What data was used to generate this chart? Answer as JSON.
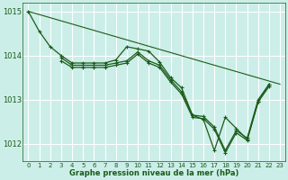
{
  "background_color": "#cceee8",
  "grid_color": "#ffffff",
  "line_color": "#1a5c1a",
  "xlabel": "Graphe pression niveau de la mer (hPa)",
  "ylim": [
    1011.6,
    1015.2
  ],
  "xlim": [
    -0.5,
    23.5
  ],
  "yticks": [
    1012,
    1013,
    1014,
    1015
  ],
  "xticks": [
    0,
    1,
    2,
    3,
    4,
    5,
    6,
    7,
    8,
    9,
    10,
    11,
    12,
    13,
    14,
    15,
    16,
    17,
    18,
    19,
    20,
    21,
    22,
    23
  ],
  "line1_x": [
    0,
    23
  ],
  "line1_y": [
    1015.0,
    1013.35
  ],
  "line2_x": [
    0,
    1,
    2,
    3,
    4,
    5,
    6,
    7,
    8,
    9,
    10,
    11,
    12,
    13,
    14,
    15,
    16,
    17,
    18,
    19,
    20,
    21,
    22
  ],
  "line2_y": [
    1015.0,
    1014.55,
    1014.2,
    1014.0,
    1013.83,
    1013.83,
    1013.83,
    1013.83,
    1013.9,
    1014.2,
    1014.15,
    1014.1,
    1013.85,
    1013.5,
    1013.27,
    1012.65,
    1012.55,
    1011.85,
    1012.6,
    1012.35,
    1012.1,
    1012.95,
    1013.35
  ],
  "line3_x": [
    3,
    4,
    5,
    6,
    7,
    8,
    9,
    10,
    11,
    12,
    13,
    14,
    15,
    16,
    17,
    18,
    19,
    20,
    21,
    22
  ],
  "line3_y": [
    1013.95,
    1013.78,
    1013.78,
    1013.78,
    1013.78,
    1013.83,
    1013.88,
    1014.08,
    1013.88,
    1013.78,
    1013.45,
    1013.18,
    1012.65,
    1012.62,
    1012.38,
    1011.85,
    1012.3,
    1012.13,
    1013.0,
    1013.35
  ],
  "line4_x": [
    3,
    4,
    5,
    6,
    7,
    8,
    9,
    10,
    11,
    12,
    13,
    14,
    15,
    16,
    17,
    18,
    19,
    20,
    21,
    22
  ],
  "line4_y": [
    1013.88,
    1013.73,
    1013.73,
    1013.73,
    1013.73,
    1013.78,
    1013.83,
    1014.03,
    1013.83,
    1013.73,
    1013.4,
    1013.13,
    1012.6,
    1012.57,
    1012.33,
    1011.8,
    1012.25,
    1012.08,
    1012.95,
    1013.3
  ]
}
